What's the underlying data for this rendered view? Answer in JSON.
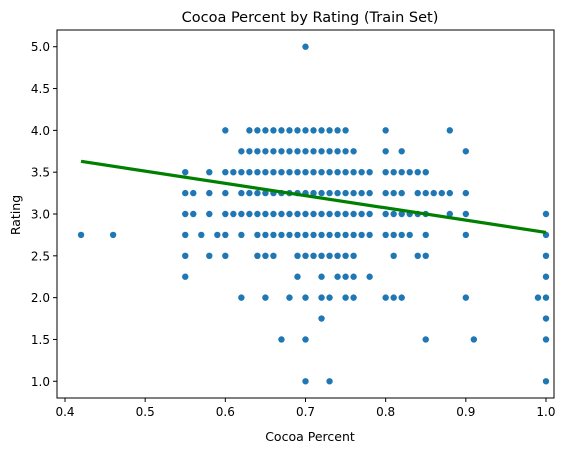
{
  "chart_data": {
    "type": "scatter",
    "title": "Cocoa Percent by Rating (Train Set)",
    "xlabel": "Cocoa Percent",
    "ylabel": "Rating",
    "xlim": [
      0.39,
      1.01
    ],
    "ylim": [
      0.8,
      5.2
    ],
    "xticks": [
      "0.4",
      "0.5",
      "0.6",
      "0.7",
      "0.8",
      "0.9",
      "1.0"
    ],
    "yticks": [
      "1.0",
      "1.5",
      "2.0",
      "2.5",
      "3.0",
      "3.5",
      "4.0",
      "4.5",
      "5.0"
    ],
    "grid": false,
    "legend": "none",
    "colors": {
      "points": "#1f77b4",
      "trend": "#008000"
    },
    "series": [
      {
        "type": "scatter",
        "points": [
          [
            0.42,
            2.75
          ],
          [
            0.46,
            2.75
          ],
          [
            0.55,
            2.25
          ],
          [
            0.55,
            2.5
          ],
          [
            0.55,
            2.75
          ],
          [
            0.55,
            3.0
          ],
          [
            0.55,
            3.25
          ],
          [
            0.55,
            3.5
          ],
          [
            0.56,
            3.0
          ],
          [
            0.56,
            3.25
          ],
          [
            0.57,
            2.75
          ],
          [
            0.58,
            2.5
          ],
          [
            0.58,
            3.0
          ],
          [
            0.58,
            3.25
          ],
          [
            0.58,
            3.5
          ],
          [
            0.59,
            2.75
          ],
          [
            0.6,
            2.5
          ],
          [
            0.6,
            2.75
          ],
          [
            0.6,
            3.0
          ],
          [
            0.6,
            3.25
          ],
          [
            0.6,
            3.5
          ],
          [
            0.6,
            4.0
          ],
          [
            0.61,
            3.0
          ],
          [
            0.61,
            3.5
          ],
          [
            0.62,
            2.0
          ],
          [
            0.62,
            2.75
          ],
          [
            0.62,
            3.0
          ],
          [
            0.62,
            3.25
          ],
          [
            0.62,
            3.5
          ],
          [
            0.62,
            3.75
          ],
          [
            0.63,
            3.0
          ],
          [
            0.63,
            3.25
          ],
          [
            0.63,
            3.5
          ],
          [
            0.63,
            3.75
          ],
          [
            0.63,
            4.0
          ],
          [
            0.64,
            2.5
          ],
          [
            0.64,
            2.75
          ],
          [
            0.64,
            3.0
          ],
          [
            0.64,
            3.25
          ],
          [
            0.64,
            3.5
          ],
          [
            0.64,
            3.75
          ],
          [
            0.64,
            4.0
          ],
          [
            0.65,
            2.0
          ],
          [
            0.65,
            2.5
          ],
          [
            0.65,
            2.75
          ],
          [
            0.65,
            3.0
          ],
          [
            0.65,
            3.25
          ],
          [
            0.65,
            3.5
          ],
          [
            0.65,
            3.75
          ],
          [
            0.65,
            4.0
          ],
          [
            0.66,
            2.5
          ],
          [
            0.66,
            2.75
          ],
          [
            0.66,
            3.0
          ],
          [
            0.66,
            3.25
          ],
          [
            0.66,
            3.5
          ],
          [
            0.66,
            3.75
          ],
          [
            0.66,
            4.0
          ],
          [
            0.67,
            1.5
          ],
          [
            0.67,
            2.75
          ],
          [
            0.67,
            3.0
          ],
          [
            0.67,
            3.25
          ],
          [
            0.67,
            3.5
          ],
          [
            0.67,
            3.75
          ],
          [
            0.67,
            4.0
          ],
          [
            0.68,
            2.0
          ],
          [
            0.68,
            2.75
          ],
          [
            0.68,
            3.0
          ],
          [
            0.68,
            3.25
          ],
          [
            0.68,
            3.5
          ],
          [
            0.68,
            3.75
          ],
          [
            0.68,
            4.0
          ],
          [
            0.69,
            2.25
          ],
          [
            0.69,
            2.5
          ],
          [
            0.69,
            2.75
          ],
          [
            0.69,
            3.0
          ],
          [
            0.69,
            3.25
          ],
          [
            0.69,
            3.5
          ],
          [
            0.69,
            3.75
          ],
          [
            0.69,
            4.0
          ],
          [
            0.7,
            1.0
          ],
          [
            0.7,
            1.5
          ],
          [
            0.7,
            2.0
          ],
          [
            0.7,
            2.5
          ],
          [
            0.7,
            2.75
          ],
          [
            0.7,
            3.0
          ],
          [
            0.7,
            3.25
          ],
          [
            0.7,
            3.5
          ],
          [
            0.7,
            3.75
          ],
          [
            0.7,
            4.0
          ],
          [
            0.7,
            5.0
          ],
          [
            0.71,
            2.5
          ],
          [
            0.71,
            2.75
          ],
          [
            0.71,
            3.0
          ],
          [
            0.71,
            3.25
          ],
          [
            0.71,
            3.5
          ],
          [
            0.71,
            3.75
          ],
          [
            0.71,
            4.0
          ],
          [
            0.72,
            1.75
          ],
          [
            0.72,
            2.0
          ],
          [
            0.72,
            2.25
          ],
          [
            0.72,
            2.5
          ],
          [
            0.72,
            2.75
          ],
          [
            0.72,
            3.0
          ],
          [
            0.72,
            3.25
          ],
          [
            0.72,
            3.5
          ],
          [
            0.72,
            3.75
          ],
          [
            0.72,
            4.0
          ],
          [
            0.73,
            1.0
          ],
          [
            0.73,
            2.0
          ],
          [
            0.73,
            2.5
          ],
          [
            0.73,
            2.75
          ],
          [
            0.73,
            3.0
          ],
          [
            0.73,
            3.25
          ],
          [
            0.73,
            3.5
          ],
          [
            0.73,
            3.75
          ],
          [
            0.73,
            4.0
          ],
          [
            0.74,
            2.25
          ],
          [
            0.74,
            2.5
          ],
          [
            0.74,
            2.75
          ],
          [
            0.74,
            3.0
          ],
          [
            0.74,
            3.25
          ],
          [
            0.74,
            3.5
          ],
          [
            0.74,
            3.75
          ],
          [
            0.74,
            4.0
          ],
          [
            0.75,
            2.0
          ],
          [
            0.75,
            2.25
          ],
          [
            0.75,
            2.5
          ],
          [
            0.75,
            2.75
          ],
          [
            0.75,
            3.0
          ],
          [
            0.75,
            3.25
          ],
          [
            0.75,
            3.5
          ],
          [
            0.75,
            3.75
          ],
          [
            0.75,
            4.0
          ],
          [
            0.76,
            2.0
          ],
          [
            0.76,
            2.25
          ],
          [
            0.76,
            2.5
          ],
          [
            0.76,
            2.75
          ],
          [
            0.76,
            3.0
          ],
          [
            0.76,
            3.25
          ],
          [
            0.76,
            3.5
          ],
          [
            0.76,
            3.75
          ],
          [
            0.77,
            2.75
          ],
          [
            0.77,
            3.0
          ],
          [
            0.77,
            3.25
          ],
          [
            0.77,
            3.5
          ],
          [
            0.78,
            2.25
          ],
          [
            0.78,
            2.75
          ],
          [
            0.78,
            3.0
          ],
          [
            0.78,
            3.25
          ],
          [
            0.78,
            3.5
          ],
          [
            0.8,
            2.0
          ],
          [
            0.8,
            2.75
          ],
          [
            0.8,
            3.0
          ],
          [
            0.8,
            3.25
          ],
          [
            0.8,
            3.5
          ],
          [
            0.8,
            3.75
          ],
          [
            0.8,
            4.0
          ],
          [
            0.81,
            2.0
          ],
          [
            0.81,
            2.5
          ],
          [
            0.81,
            2.75
          ],
          [
            0.81,
            3.0
          ],
          [
            0.81,
            3.25
          ],
          [
            0.81,
            3.5
          ],
          [
            0.82,
            2.0
          ],
          [
            0.82,
            2.75
          ],
          [
            0.82,
            3.0
          ],
          [
            0.82,
            3.25
          ],
          [
            0.82,
            3.5
          ],
          [
            0.82,
            3.75
          ],
          [
            0.83,
            2.75
          ],
          [
            0.83,
            3.0
          ],
          [
            0.83,
            3.5
          ],
          [
            0.84,
            2.5
          ],
          [
            0.84,
            3.0
          ],
          [
            0.84,
            3.25
          ],
          [
            0.84,
            3.5
          ],
          [
            0.85,
            1.5
          ],
          [
            0.85,
            2.5
          ],
          [
            0.85,
            2.75
          ],
          [
            0.85,
            3.0
          ],
          [
            0.85,
            3.25
          ],
          [
            0.85,
            3.5
          ],
          [
            0.86,
            3.25
          ],
          [
            0.87,
            3.25
          ],
          [
            0.88,
            3.0
          ],
          [
            0.88,
            3.25
          ],
          [
            0.88,
            4.0
          ],
          [
            0.9,
            2.0
          ],
          [
            0.9,
            2.75
          ],
          [
            0.9,
            3.0
          ],
          [
            0.9,
            3.25
          ],
          [
            0.9,
            3.75
          ],
          [
            0.91,
            1.5
          ],
          [
            0.99,
            2.0
          ],
          [
            1.0,
            1.0
          ],
          [
            1.0,
            1.5
          ],
          [
            1.0,
            1.75
          ],
          [
            1.0,
            2.0
          ],
          [
            1.0,
            2.25
          ],
          [
            1.0,
            2.5
          ],
          [
            1.0,
            2.75
          ],
          [
            1.0,
            3.0
          ]
        ]
      },
      {
        "type": "line",
        "x": [
          0.42,
          1.0
        ],
        "y": [
          3.63,
          2.78
        ]
      }
    ]
  }
}
